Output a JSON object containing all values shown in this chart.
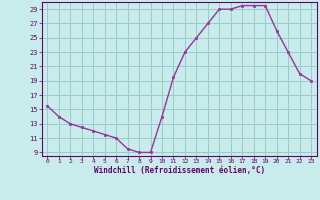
{
  "x": [
    0,
    1,
    2,
    3,
    4,
    5,
    6,
    7,
    8,
    9,
    10,
    11,
    12,
    13,
    14,
    15,
    16,
    17,
    18,
    19,
    20,
    21,
    22,
    23
  ],
  "y": [
    15.5,
    14.0,
    13.0,
    12.5,
    12.0,
    11.5,
    11.0,
    9.5,
    9.0,
    9.0,
    14.0,
    19.5,
    23.0,
    25.0,
    27.0,
    29.0,
    29.0,
    29.5,
    29.5,
    29.5,
    26.0,
    23.0,
    20.0,
    19.0
  ],
  "line_color": "#993399",
  "marker_color": "#993399",
  "bg_color": "#c8ecec",
  "grid_color": "#99cccc",
  "xlabel": "Windchill (Refroidissement éolien,°C)",
  "xlim": [
    -0.5,
    23.5
  ],
  "ylim": [
    8.5,
    30.0
  ],
  "yticks": [
    9,
    11,
    13,
    15,
    17,
    19,
    21,
    23,
    25,
    27,
    29
  ],
  "xticks": [
    0,
    1,
    2,
    3,
    4,
    5,
    6,
    7,
    8,
    9,
    10,
    11,
    12,
    13,
    14,
    15,
    16,
    17,
    18,
    19,
    20,
    21,
    22,
    23
  ],
  "axis_color": "#660066",
  "tick_color": "#660066",
  "label_color": "#660066"
}
